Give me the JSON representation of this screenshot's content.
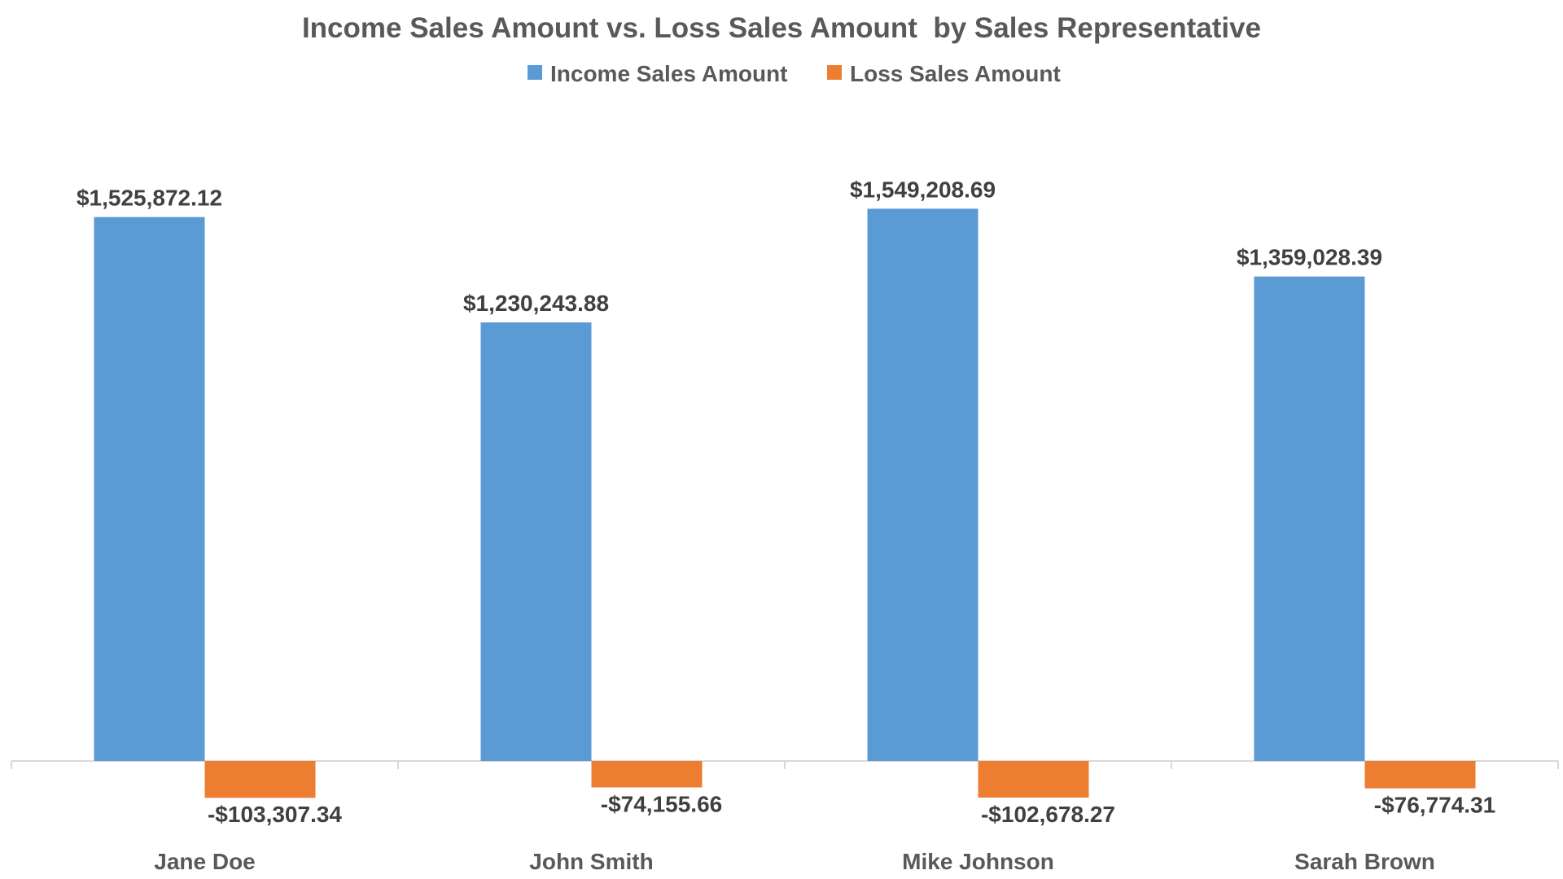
{
  "chart_data": {
    "type": "bar",
    "title": "Income Sales Amount vs. Loss Sales Amount  by Sales Representative",
    "categories": [
      "Jane Doe",
      "John Smith",
      "Mike Johnson",
      "Sarah Brown"
    ],
    "series": [
      {
        "name": "Income Sales Amount",
        "color": "#5B9BD5",
        "values": [
          1525872.12,
          1230243.88,
          1549208.69,
          1359028.39
        ],
        "labels": [
          "$1,525,872.12",
          "$1,230,243.88",
          "$1,549,208.69",
          "$1,359,028.39"
        ]
      },
      {
        "name": "Loss Sales Amount",
        "color": "#ED7D31",
        "values": [
          -103307.34,
          -74155.66,
          -102678.27,
          -76774.31
        ],
        "labels": [
          "-$103,307.34",
          "-$74,155.66",
          "-$102,678.27",
          "-$76,774.31"
        ]
      }
    ],
    "ylim": [
      -160000,
      1550000
    ],
    "legend_position": "top-center",
    "grid": false,
    "y_axis_visible": false
  }
}
